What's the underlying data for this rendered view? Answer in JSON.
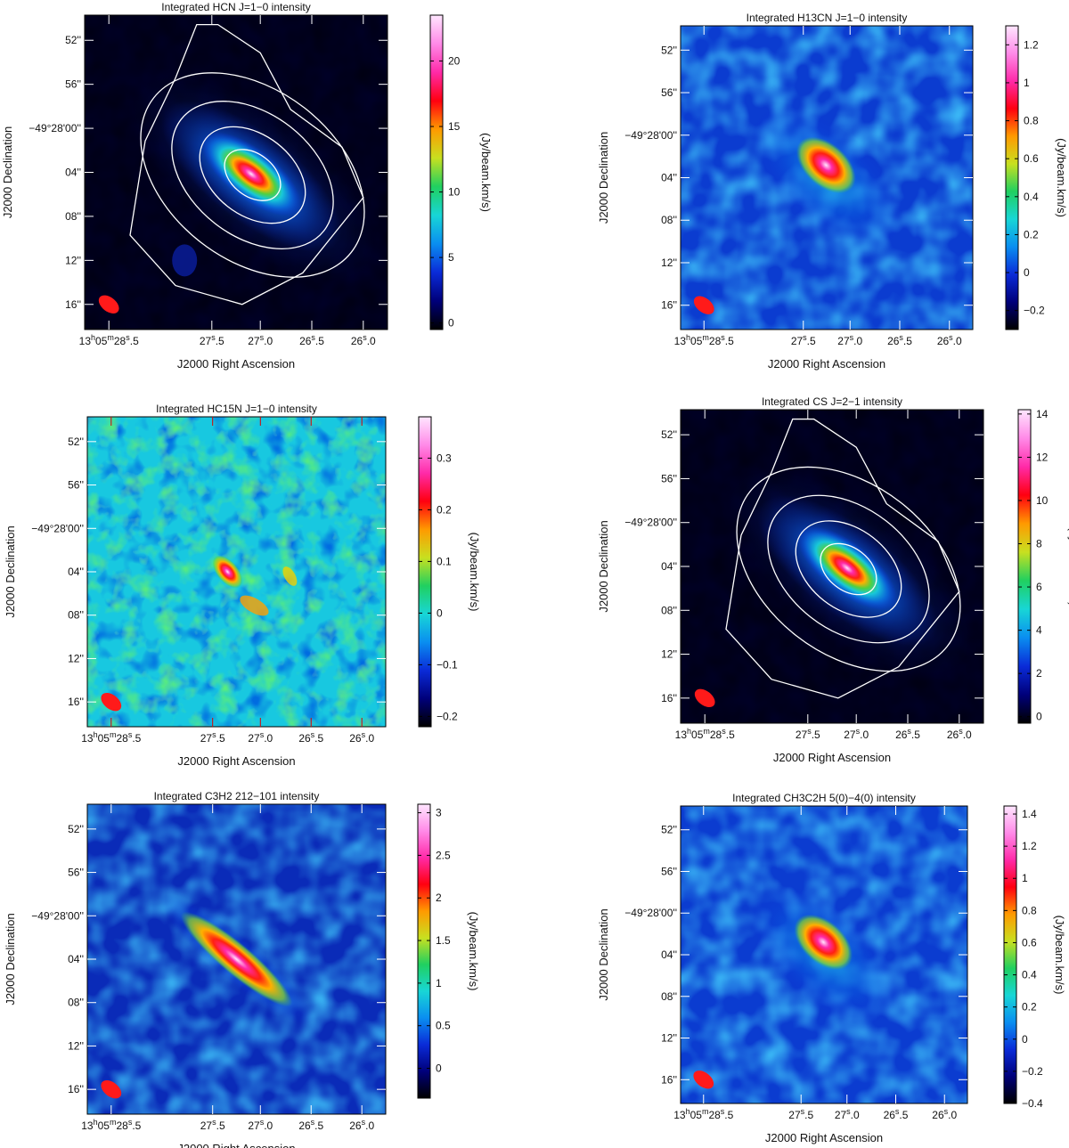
{
  "figure": {
    "panels_count": 6
  },
  "shared_axes": {
    "xlabel": "J2000 Right Ascension",
    "ylabel": "J2000 Declination",
    "cbar_label": "(Jy/beam.km/s)",
    "ra_ticks": [
      {
        "pos": 0.08,
        "main": "13",
        "s1": "h",
        "mid": "05",
        "s2": "m",
        "tail": "28",
        "s3": "s",
        "frac": ".5"
      },
      {
        "pos": 0.42,
        "main": "27",
        "s3": "s",
        "frac": ".5"
      },
      {
        "pos": 0.58,
        "main": "27",
        "s3": "s",
        "frac": ".0"
      },
      {
        "pos": 0.75,
        "main": "26",
        "s3": "s",
        "frac": ".5"
      },
      {
        "pos": 0.92,
        "main": "26",
        "s3": "s",
        "frac": ".0"
      }
    ],
    "dec_ticks": [
      {
        "pos": 0.08,
        "label": "52''"
      },
      {
        "pos": 0.22,
        "label": "56''"
      },
      {
        "pos": 0.36,
        "label": "−49°28'00''",
        "special": true
      },
      {
        "pos": 0.5,
        "label": "04''"
      },
      {
        "pos": 0.64,
        "label": "08''"
      },
      {
        "pos": 0.78,
        "label": "12''"
      },
      {
        "pos": 0.92,
        "label": "16''"
      }
    ]
  },
  "colors": {
    "beam": "#ff1a1a",
    "contour": "#ffffff",
    "colormap": [
      "#000000",
      "#00007a",
      "#0a2bd8",
      "#0a8ef0",
      "#18d6d6",
      "#20d060",
      "#c8e020",
      "#ff9a00",
      "#ff0010",
      "#ff2aa8",
      "#ff8ae8",
      "#ffe6ff"
    ]
  },
  "chart_data": [
    {
      "type": "heatmap",
      "title": "Integrated HCN J=1−0 intensity",
      "cbar_range": [
        -0.5,
        23.5
      ],
      "cbar_ticks": [
        0,
        5,
        10,
        15,
        20
      ],
      "cbar_tick_labels": [
        "0",
        "5",
        "10",
        "15",
        "20"
      ],
      "peak_value": 23.5,
      "contours": true
    },
    {
      "type": "heatmap",
      "title": "Integrated H13CN J=1−0 intensity",
      "cbar_range": [
        -0.3,
        1.3
      ],
      "cbar_ticks": [
        -0.2,
        0,
        0.2,
        0.4,
        0.6,
        0.8,
        1,
        1.2
      ],
      "cbar_tick_labels": [
        "−0.2",
        "0",
        "0.2",
        "0.4",
        "0.6",
        "0.8",
        "1",
        "1.2"
      ],
      "peak_value": 1.3,
      "contours": false
    },
    {
      "type": "heatmap",
      "title": "Integrated HC15N J=1−0 intensity",
      "cbar_range": [
        -0.22,
        0.38
      ],
      "cbar_ticks": [
        -0.2,
        -0.1,
        0,
        0.1,
        0.2,
        0.3
      ],
      "cbar_tick_labels": [
        "−0.2",
        "−0.1",
        "0",
        "0.1",
        "0.2",
        "0.3"
      ],
      "peak_value": 0.38,
      "contours": false
    },
    {
      "type": "heatmap",
      "title": "Integrated CS J=2−1 intensity",
      "cbar_range": [
        -0.3,
        14.2
      ],
      "cbar_ticks": [
        0,
        2,
        4,
        6,
        8,
        10,
        12,
        14
      ],
      "cbar_tick_labels": [
        "0",
        "2",
        "4",
        "6",
        "8",
        "10",
        "12",
        "14"
      ],
      "peak_value": 14.2,
      "contours": true
    },
    {
      "type": "heatmap",
      "title": "Integrated C3H2 212−101 intensity",
      "cbar_range": [
        -0.35,
        3.1
      ],
      "cbar_ticks": [
        0,
        0.5,
        1,
        1.5,
        2,
        2.5,
        3
      ],
      "cbar_tick_labels": [
        "0",
        "0.5",
        "1",
        "1.5",
        "2",
        "2.5",
        "3"
      ],
      "peak_value": 3.1,
      "contours": false
    },
    {
      "type": "heatmap",
      "title": "Integrated CH3C2H 5(0)−4(0) intensity",
      "cbar_range": [
        -0.4,
        1.45
      ],
      "cbar_ticks": [
        -0.4,
        -0.2,
        0,
        0.2,
        0.4,
        0.6,
        0.8,
        1,
        1.2,
        1.4
      ],
      "cbar_tick_labels": [
        "−0.4",
        "−0.2",
        "0",
        "0.2",
        "0.4",
        "0.6",
        "0.8",
        "1",
        "1.2",
        "1.4"
      ],
      "peak_value": 1.45,
      "contours": false
    }
  ]
}
